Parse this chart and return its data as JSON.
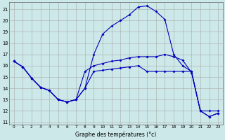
{
  "xlabel": "Graphe des températures (°c)",
  "background_color": "#cce8e8",
  "grid_color": "#aaaaaa",
  "line_color": "#0000bb",
  "x_ticks": [
    0,
    1,
    2,
    3,
    4,
    5,
    6,
    7,
    8,
    9,
    10,
    11,
    12,
    13,
    14,
    15,
    16,
    17,
    18,
    19,
    20,
    21,
    22,
    23
  ],
  "y_ticks": [
    11,
    12,
    13,
    14,
    15,
    16,
    17,
    18,
    19,
    20,
    21
  ],
  "ylim": [
    10.8,
    21.6
  ],
  "xlim": [
    -0.5,
    23.5
  ],
  "line1_x": [
    0,
    1,
    2,
    3,
    4,
    5,
    6,
    7,
    8,
    9,
    10,
    11,
    12,
    13,
    14,
    15,
    16,
    17,
    18,
    19,
    20,
    21,
    22,
    23
  ],
  "line1_y": [
    16.4,
    15.9,
    14.9,
    14.1,
    13.8,
    13.0,
    12.8,
    13.0,
    14.0,
    15.5,
    15.6,
    15.7,
    15.8,
    15.9,
    16.0,
    15.5,
    15.5,
    15.5,
    15.5,
    15.5,
    15.5,
    12.0,
    11.5,
    11.8
  ],
  "line2_x": [
    0,
    1,
    2,
    3,
    4,
    5,
    6,
    7,
    8,
    9,
    10,
    11,
    12,
    13,
    14,
    15,
    16,
    17,
    18,
    19,
    20,
    21,
    22,
    23
  ],
  "line2_y": [
    16.4,
    15.9,
    14.9,
    14.1,
    13.8,
    13.0,
    12.8,
    13.0,
    14.0,
    17.0,
    18.8,
    19.5,
    20.0,
    20.5,
    21.2,
    21.3,
    20.8,
    20.1,
    17.0,
    16.0,
    15.5,
    12.0,
    11.5,
    11.8
  ],
  "line3_x": [
    0,
    1,
    2,
    3,
    4,
    5,
    6,
    7,
    8,
    9,
    10,
    11,
    12,
    13,
    14,
    15,
    16,
    17,
    18,
    19,
    20,
    21,
    22,
    23
  ],
  "line3_y": [
    16.4,
    15.9,
    14.9,
    14.1,
    13.8,
    13.0,
    12.8,
    13.0,
    15.5,
    16.0,
    16.2,
    16.4,
    16.5,
    16.7,
    16.8,
    16.8,
    16.8,
    17.0,
    16.8,
    16.5,
    15.4,
    12.0,
    12.0,
    12.0
  ]
}
